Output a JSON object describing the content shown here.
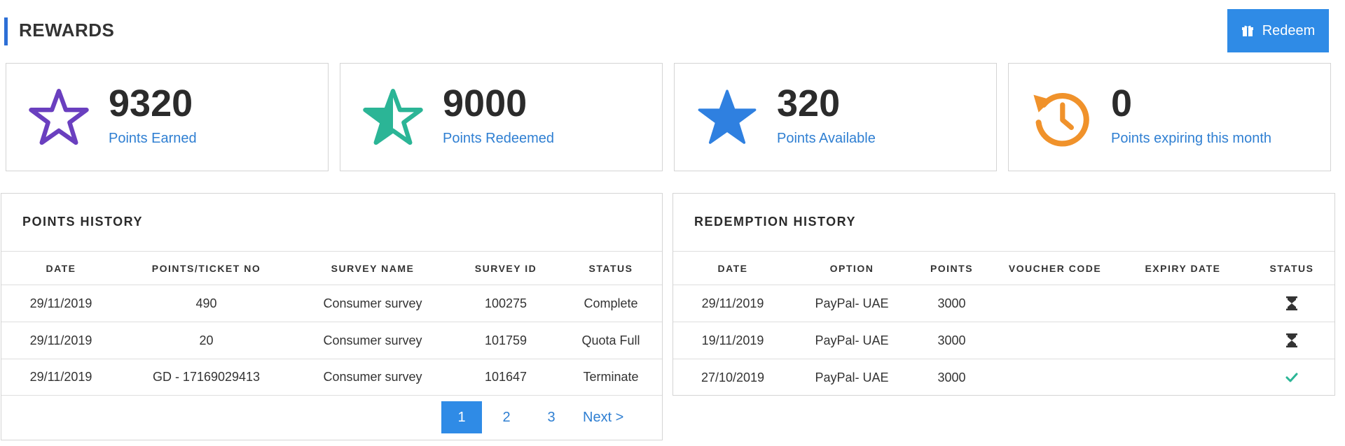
{
  "header": {
    "title": "REWARDS",
    "redeem_label": "Redeem"
  },
  "stats": [
    {
      "value": "9320",
      "label": "Points Earned",
      "icon": "star-outline-icon",
      "color": "#6a3fbf"
    },
    {
      "value": "9000",
      "label": "Points Redeemed",
      "icon": "star-half-icon",
      "color": "#2bb596"
    },
    {
      "value": "320",
      "label": "Points Available",
      "icon": "star-filled-icon",
      "color": "#2f80e0"
    },
    {
      "value": "0",
      "label": "Points expiring this month",
      "icon": "history-clock-icon",
      "color": "#f0922b"
    }
  ],
  "points_history": {
    "title": "POINTS HISTORY",
    "columns": [
      "DATE",
      "POINTS/TICKET NO",
      "SURVEY NAME",
      "SURVEY ID",
      "STATUS"
    ],
    "rows": [
      [
        "29/11/2019",
        "490",
        "Consumer survey",
        "100275",
        "Complete"
      ],
      [
        "29/11/2019",
        "20",
        "Consumer survey",
        "101759",
        "Quota Full"
      ],
      [
        "29/11/2019",
        "GD - 17169029413",
        "Consumer survey",
        "101647",
        "Terminate"
      ]
    ],
    "pagination": {
      "pages": [
        "1",
        "2",
        "3"
      ],
      "active": "1",
      "next_label": "Next >"
    }
  },
  "redemption_history": {
    "title": "REDEMPTION HISTORY",
    "columns": [
      "DATE",
      "OPTION",
      "POINTS",
      "VOUCHER CODE",
      "EXPIRY DATE",
      "STATUS"
    ],
    "rows": [
      {
        "date": "29/11/2019",
        "option": "PayPal- UAE",
        "points": "3000",
        "voucher_code": "",
        "expiry_date": "",
        "status_icon": "hourglass-icon"
      },
      {
        "date": "19/11/2019",
        "option": "PayPal- UAE",
        "points": "3000",
        "voucher_code": "",
        "expiry_date": "",
        "status_icon": "hourglass-icon"
      },
      {
        "date": "27/10/2019",
        "option": "PayPal- UAE",
        "points": "3000",
        "voucher_code": "",
        "expiry_date": "",
        "status_icon": "check-icon"
      }
    ]
  }
}
